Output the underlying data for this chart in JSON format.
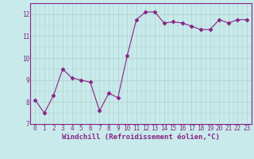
{
  "x": [
    0,
    1,
    2,
    3,
    4,
    5,
    6,
    7,
    8,
    9,
    10,
    11,
    12,
    13,
    14,
    15,
    16,
    17,
    18,
    19,
    20,
    21,
    22,
    23
  ],
  "y": [
    8.1,
    7.5,
    8.3,
    9.5,
    9.1,
    9.0,
    8.9,
    7.6,
    8.4,
    8.2,
    10.1,
    11.75,
    12.1,
    12.1,
    11.6,
    11.65,
    11.6,
    11.45,
    11.3,
    11.3,
    11.75,
    11.6,
    11.75,
    11.75
  ],
  "line_color": "#882288",
  "marker": "D",
  "marker_size": 2.5,
  "bg_color": "#c8eaea",
  "grid_color": "#b0cece",
  "ylim": [
    7,
    12.5
  ],
  "xlim": [
    -0.5,
    23.5
  ],
  "yticks": [
    7,
    8,
    9,
    10,
    11,
    12
  ],
  "xticks": [
    0,
    1,
    2,
    3,
    4,
    5,
    6,
    7,
    8,
    9,
    10,
    11,
    12,
    13,
    14,
    15,
    16,
    17,
    18,
    19,
    20,
    21,
    22,
    23
  ],
  "xlabel": "Windchill (Refroidissement éolien,°C)",
  "tick_color": "#882288",
  "label_color": "#882288",
  "label_fontsize": 6.5,
  "tick_fontsize": 5.5,
  "spine_color": "#882288"
}
